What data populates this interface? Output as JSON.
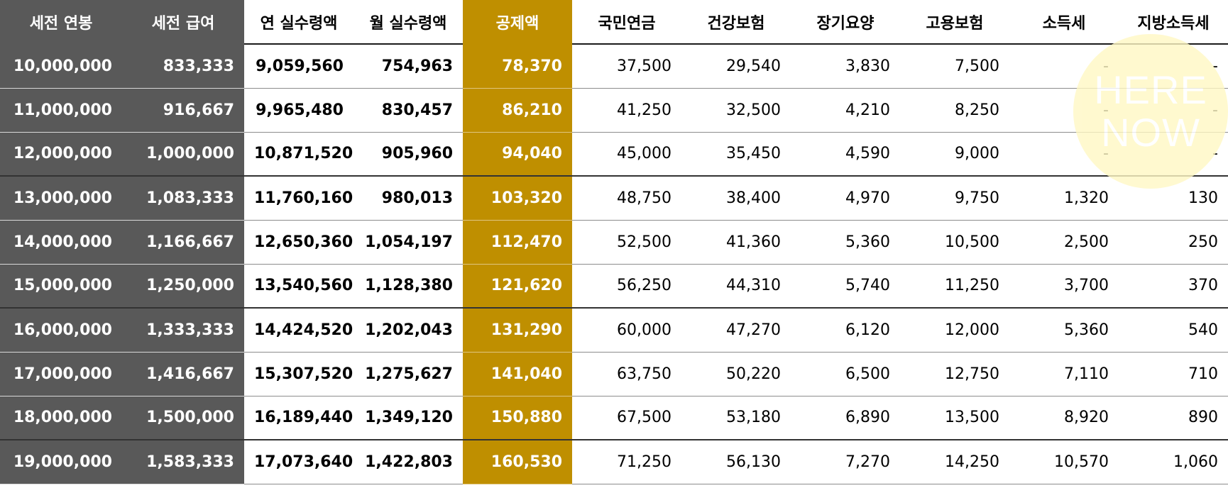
{
  "header": {
    "columns": [
      "세전 연봉",
      "세전 급여",
      "연 실수령액",
      "월 실수령액",
      "공제액",
      "국민연금",
      "건강보험",
      "장기요양",
      "고용보험",
      "소득세",
      "지방소득세"
    ]
  },
  "rows": [
    [
      "10,000,000",
      "833,333",
      "9,059,560",
      "754,963",
      "78,370",
      "37,500",
      "29,540",
      "3,830",
      "7,500",
      "-",
      "-"
    ],
    [
      "11,000,000",
      "916,667",
      "9,965,480",
      "830,457",
      "86,210",
      "41,250",
      "32,500",
      "4,210",
      "8,250",
      "-",
      "-"
    ],
    [
      "12,000,000",
      "1,000,000",
      "10,871,520",
      "905,960",
      "94,040",
      "45,000",
      "35,450",
      "4,590",
      "9,000",
      "-",
      "-"
    ],
    [
      "13,000,000",
      "1,083,333",
      "11,760,160",
      "980,013",
      "103,320",
      "48,750",
      "38,400",
      "4,970",
      "9,750",
      "1,320",
      "130"
    ],
    [
      "14,000,000",
      "1,166,667",
      "12,650,360",
      "1,054,197",
      "112,470",
      "52,500",
      "41,360",
      "5,360",
      "10,500",
      "2,500",
      "250"
    ],
    [
      "15,000,000",
      "1,250,000",
      "13,540,560",
      "1,128,380",
      "121,620",
      "56,250",
      "44,310",
      "5,740",
      "11,250",
      "3,700",
      "370"
    ],
    [
      "16,000,000",
      "1,333,333",
      "14,424,520",
      "1,202,043",
      "131,290",
      "60,000",
      "47,270",
      "6,120",
      "12,000",
      "5,360",
      "540"
    ],
    [
      "17,000,000",
      "1,416,667",
      "15,307,520",
      "1,275,627",
      "141,040",
      "63,750",
      "50,220",
      "6,500",
      "12,750",
      "7,110",
      "710"
    ],
    [
      "18,000,000",
      "1,500,000",
      "16,189,440",
      "1,349,120",
      "150,880",
      "67,500",
      "53,180",
      "6,890",
      "13,500",
      "8,920",
      "890"
    ],
    [
      "19,000,000",
      "1,583,333",
      "17,073,640",
      "1,422,803",
      "160,530",
      "71,250",
      "56,130",
      "7,270",
      "14,250",
      "10,570",
      "1,060"
    ]
  ],
  "watermark": {
    "line1": "HERE",
    "line2": "NOW",
    "color": "#fff8c4"
  },
  "colors": {
    "dark_column": "#595959",
    "gold_column": "#bf8f00",
    "header_text_light": "#ffffff"
  }
}
